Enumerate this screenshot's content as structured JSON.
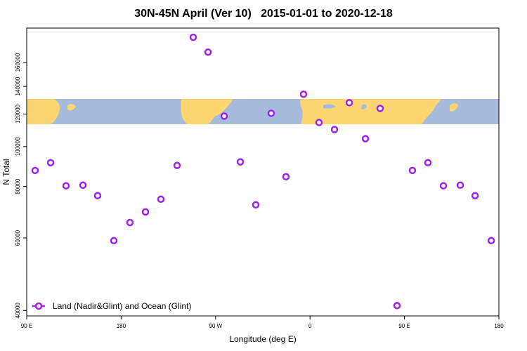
{
  "chart_data": {
    "type": "scatter",
    "title": "30N-45N April (Ver 10)   2015-01-01 to 2020-12-18",
    "x_label": "Longitude (deg E)",
    "y_label": "N Total",
    "log_y": true,
    "xlim": [
      90,
      540
    ],
    "ylim": [
      38800,
      194000
    ],
    "xticks": [
      {
        "value": 90,
        "label": "90 E"
      },
      180,
      {
        "value": 270,
        "label": "90 W"
      },
      {
        "value": 360,
        "label": "0"
      },
      {
        "value": 450,
        "label": "90 E"
      },
      {
        "value": 540,
        "label": "180"
      }
    ],
    "yticks": [
      40000,
      60000,
      80000,
      100000,
      120000,
      140000,
      160000
    ],
    "legend": "bottom-left",
    "series": [
      {
        "name": "Land (Nadir&Glint) and Ocean (Glint)",
        "color": "#a020f0",
        "x": [
          98,
          112.8,
          127.5,
          143.6,
          157.6,
          173,
          188.4,
          203.2,
          217.9,
          233.3,
          248.7,
          262.8,
          278.2,
          293.6,
          308.3,
          323,
          337.1,
          353.8,
          368.6,
          383.3,
          397.4,
          412.8,
          426.8,
          442.9,
          457.6,
          472.4,
          487.1,
          503.2,
          517.3,
          532.7
        ],
        "values": [
          87500,
          91400,
          80300,
          80600,
          76000,
          59100,
          65400,
          69400,
          74500,
          90000,
          184300,
          169600,
          118600,
          91800,
          72200,
          120500,
          84500,
          134000,
          114400,
          110000,
          127800,
          104500,
          123800,
          41100,
          87500,
          91400,
          80300,
          80600,
          76000,
          59100
        ]
      }
    ]
  }
}
